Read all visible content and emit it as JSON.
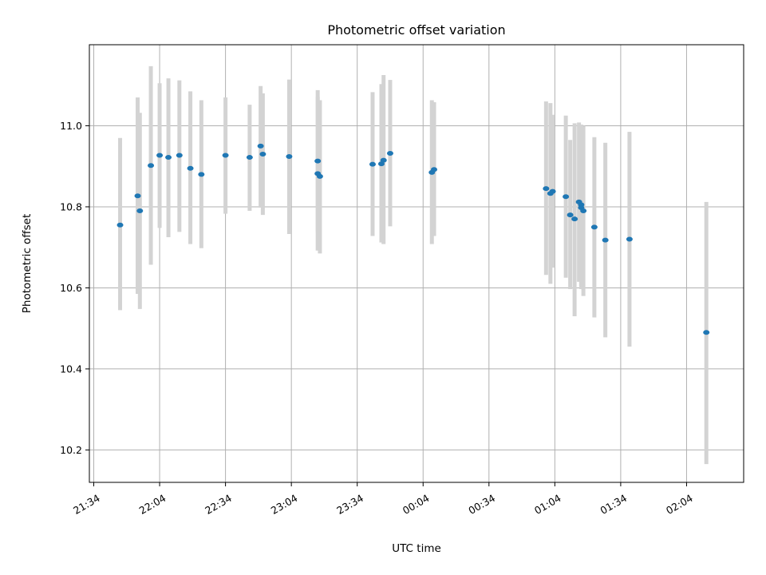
{
  "chart_data": {
    "type": "scatter",
    "title": "Photometric offset variation",
    "xlabel": "UTC time",
    "ylabel": "Photometric offset",
    "xlim": [
      "21:32",
      "02:30"
    ],
    "ylim": [
      10.12,
      11.2
    ],
    "x_ticks": [
      "21:34",
      "22:04",
      "22:34",
      "23:04",
      "23:34",
      "00:04",
      "00:34",
      "01:04",
      "01:34",
      "02:04"
    ],
    "y_ticks": [
      "10.2",
      "10.4",
      "10.6",
      "10.8",
      "11.0"
    ],
    "grid": true,
    "point_color": "#1f77b4",
    "error_color": "#d3d3d3",
    "series": [
      {
        "points": [
          {
            "t": "21:46",
            "y": 10.755,
            "lo": 10.545,
            "hi": 10.97
          },
          {
            "t": "21:54",
            "y": 10.827,
            "lo": 10.585,
            "hi": 11.07
          },
          {
            "t": "21:55",
            "y": 10.79,
            "lo": 10.548,
            "hi": 11.032
          },
          {
            "t": "22:00",
            "y": 10.902,
            "lo": 10.657,
            "hi": 11.147
          },
          {
            "t": "22:04",
            "y": 10.927,
            "lo": 10.748,
            "hi": 11.105
          },
          {
            "t": "22:08",
            "y": 10.922,
            "lo": 10.725,
            "hi": 11.117
          },
          {
            "t": "22:13",
            "y": 10.927,
            "lo": 10.738,
            "hi": 11.112
          },
          {
            "t": "22:18",
            "y": 10.895,
            "lo": 10.708,
            "hi": 11.085
          },
          {
            "t": "22:23",
            "y": 10.88,
            "lo": 10.698,
            "hi": 11.063
          },
          {
            "t": "22:34",
            "y": 10.927,
            "lo": 10.783,
            "hi": 11.07
          },
          {
            "t": "22:45",
            "y": 10.922,
            "lo": 10.79,
            "hi": 11.052
          },
          {
            "t": "22:50",
            "y": 10.95,
            "lo": 10.798,
            "hi": 11.098
          },
          {
            "t": "22:51",
            "y": 10.93,
            "lo": 10.78,
            "hi": 11.08
          },
          {
            "t": "23:03",
            "y": 10.924,
            "lo": 10.733,
            "hi": 11.114
          },
          {
            "t": "23:16",
            "y": 10.882,
            "lo": 10.692,
            "hi": 11.072
          },
          {
            "t": "23:16",
            "y": 10.913,
            "lo": 10.738,
            "hi": 11.088
          },
          {
            "t": "23:17",
            "y": 10.875,
            "lo": 10.685,
            "hi": 11.063
          },
          {
            "t": "23:41",
            "y": 10.905,
            "lo": 10.728,
            "hi": 11.083
          },
          {
            "t": "23:45",
            "y": 10.906,
            "lo": 10.712,
            "hi": 11.103
          },
          {
            "t": "23:46",
            "y": 10.915,
            "lo": 10.708,
            "hi": 11.125
          },
          {
            "t": "23:49",
            "y": 10.932,
            "lo": 10.752,
            "hi": 11.113
          },
          {
            "t": "00:08",
            "y": 10.885,
            "lo": 10.708,
            "hi": 11.063
          },
          {
            "t": "00:09",
            "y": 10.892,
            "lo": 10.728,
            "hi": 11.058
          },
          {
            "t": "01:00",
            "y": 10.845,
            "lo": 10.632,
            "hi": 11.06
          },
          {
            "t": "01:02",
            "y": 10.833,
            "lo": 10.61,
            "hi": 11.056
          },
          {
            "t": "01:03",
            "y": 10.838,
            "lo": 10.65,
            "hi": 11.027
          },
          {
            "t": "01:09",
            "y": 10.825,
            "lo": 10.625,
            "hi": 11.025
          },
          {
            "t": "01:11",
            "y": 10.78,
            "lo": 10.597,
            "hi": 10.965
          },
          {
            "t": "01:13",
            "y": 10.77,
            "lo": 10.53,
            "hi": 11.006
          },
          {
            "t": "01:15",
            "y": 10.812,
            "lo": 10.615,
            "hi": 11.008
          },
          {
            "t": "01:16",
            "y": 10.805,
            "lo": 10.605,
            "hi": 11.003
          },
          {
            "t": "01:16",
            "y": 10.798,
            "lo": 10.597,
            "hi": 10.997
          },
          {
            "t": "01:17",
            "y": 10.79,
            "lo": 10.58,
            "hi": 11.0
          },
          {
            "t": "01:22",
            "y": 10.75,
            "lo": 10.527,
            "hi": 10.972
          },
          {
            "t": "01:27",
            "y": 10.718,
            "lo": 10.478,
            "hi": 10.958
          },
          {
            "t": "01:38",
            "y": 10.72,
            "lo": 10.455,
            "hi": 10.985
          },
          {
            "t": "02:13",
            "y": 10.49,
            "lo": 10.165,
            "hi": 10.812
          }
        ]
      }
    ]
  }
}
